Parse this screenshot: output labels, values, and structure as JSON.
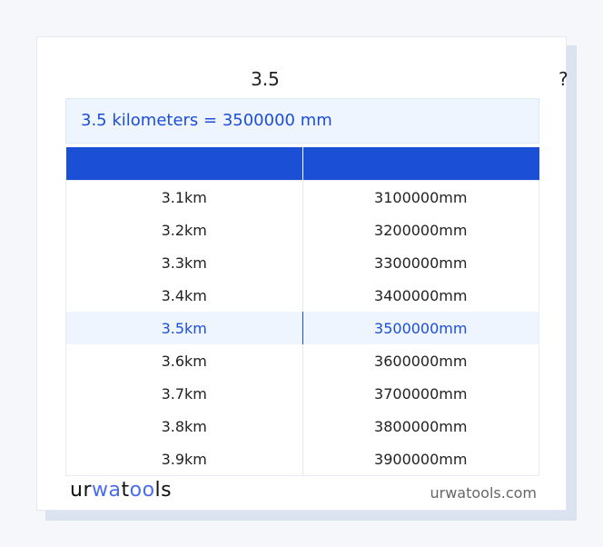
{
  "input_value": "3.5",
  "help": "?",
  "result": "3.5 kilometers = 3500000 mm",
  "table": {
    "headers": [
      "",
      ""
    ],
    "rows": [
      [
        "3.1km",
        "3100000mm"
      ],
      [
        "3.2km",
        "3200000mm"
      ],
      [
        "3.3km",
        "3300000mm"
      ],
      [
        "3.4km",
        "3400000mm"
      ],
      [
        "3.5km",
        "3500000mm"
      ],
      [
        "3.6km",
        "3600000mm"
      ],
      [
        "3.7km",
        "3700000mm"
      ],
      [
        "3.8km",
        "3800000mm"
      ],
      [
        "3.9km",
        "3900000mm"
      ]
    ],
    "highlighted_row": 4
  },
  "footer": {
    "logo": "urwatools",
    "site": "urwatools.com"
  },
  "colors": {
    "accent": "#1b4fd6",
    "highlight_bg": "#eef5fe"
  }
}
